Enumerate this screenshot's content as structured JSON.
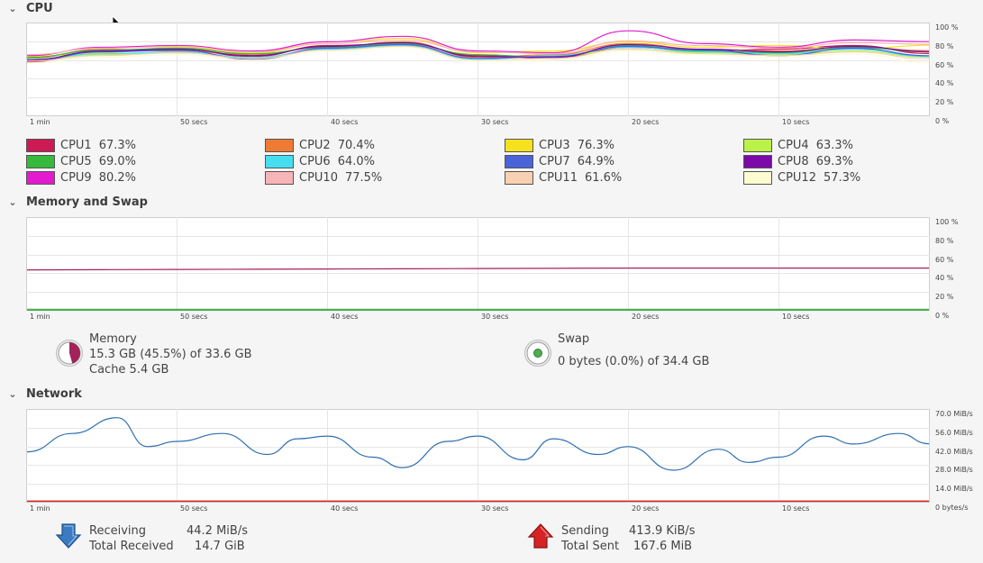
{
  "cpu": {
    "title": "CPU",
    "y_ticks": [
      "100 %",
      "80 %",
      "60 %",
      "40 %",
      "20 %",
      "0 %"
    ],
    "x_ticks": [
      "1 min",
      "50 secs",
      "40 secs",
      "30 secs",
      "20 secs",
      "10 secs"
    ],
    "legend": [
      {
        "label": "CPU1",
        "value": "67.3%",
        "color": "#cc1a55"
      },
      {
        "label": "CPU2",
        "value": "70.4%",
        "color": "#ee7a33"
      },
      {
        "label": "CPU3",
        "value": "76.3%",
        "color": "#f7e11e"
      },
      {
        "label": "CPU4",
        "value": "63.3%",
        "color": "#bbf24a"
      },
      {
        "label": "CPU5",
        "value": "69.0%",
        "color": "#36b93c"
      },
      {
        "label": "CPU6",
        "value": "64.0%",
        "color": "#45def0"
      },
      {
        "label": "CPU7",
        "value": "64.9%",
        "color": "#4a63d9"
      },
      {
        "label": "CPU8",
        "value": "69.3%",
        "color": "#7b0aa8"
      },
      {
        "label": "CPU9",
        "value": "80.2%",
        "color": "#e31acf"
      },
      {
        "label": "CPU10",
        "value": "77.5%",
        "color": "#f7b5b7"
      },
      {
        "label": "CPU11",
        "value": "61.6%",
        "color": "#f9d0b1"
      },
      {
        "label": "CPU12",
        "value": "57.3%",
        "color": "#fdfcd1"
      }
    ]
  },
  "memory_swap": {
    "title": "Memory and Swap",
    "y_ticks": [
      "100 %",
      "80 %",
      "60 %",
      "40 %",
      "20 %",
      "0 %"
    ],
    "x_ticks": [
      "1 min",
      "50 secs",
      "40 secs",
      "30 secs",
      "20 secs",
      "10 secs"
    ],
    "memory": {
      "label": "Memory",
      "usage": "15.3 GB (45.5%) of 33.6 GB",
      "cache": "Cache 5.4 GB",
      "percent": 45.5,
      "color": "#a3225a"
    },
    "swap": {
      "label": "Swap",
      "usage": "0 bytes (0.0%) of 34.4 GB",
      "percent": 0.0,
      "color": "#4caf50"
    }
  },
  "network": {
    "title": "Network",
    "y_ticks": [
      "70.0 MiB/s",
      "56.0 MiB/s",
      "42.0 MiB/s",
      "28.0 MiB/s",
      "14.0 MiB/s",
      "0 bytes/s"
    ],
    "x_ticks": [
      "1 min",
      "50 secs",
      "40 secs",
      "30 secs",
      "20 secs",
      "10 secs"
    ],
    "receiving": {
      "label": "Receiving",
      "value": "44.2 MiB/s",
      "total_label": "Total Received",
      "total": "14.7 GiB",
      "color": "#2e6fb1"
    },
    "sending": {
      "label": "Sending",
      "value": "413.9 KiB/s",
      "total_label": "Total Sent",
      "total": "167.6 MiB",
      "color": "#d22222"
    }
  },
  "chart_data": [
    {
      "type": "line",
      "title": "CPU",
      "ylabel": "%",
      "ylim": [
        0,
        100
      ],
      "x": [
        60,
        55,
        50,
        45,
        40,
        35,
        30,
        25,
        20,
        15,
        10,
        5,
        0
      ],
      "series": [
        {
          "name": "CPU1",
          "values": [
            58,
            70,
            72,
            64,
            76,
            78,
            65,
            62,
            74,
            70,
            72,
            76,
            67.3
          ]
        },
        {
          "name": "CPU2",
          "values": [
            62,
            72,
            70,
            66,
            74,
            80,
            63,
            66,
            78,
            72,
            70,
            74,
            70.4
          ]
        },
        {
          "name": "CPU3",
          "values": [
            64,
            68,
            74,
            68,
            78,
            84,
            68,
            70,
            80,
            74,
            76,
            72,
            76.3
          ]
        },
        {
          "name": "CPU4",
          "values": [
            60,
            66,
            68,
            62,
            72,
            76,
            62,
            64,
            72,
            68,
            66,
            70,
            63.3
          ]
        },
        {
          "name": "CPU5",
          "values": [
            63,
            71,
            73,
            67,
            74,
            78,
            66,
            63,
            76,
            70,
            68,
            74,
            69.0
          ]
        },
        {
          "name": "CPU6",
          "values": [
            61,
            67,
            69,
            63,
            72,
            76,
            61,
            65,
            74,
            69,
            67,
            72,
            64.0
          ]
        },
        {
          "name": "CPU7",
          "values": [
            59,
            69,
            71,
            61,
            73,
            77,
            62,
            64,
            75,
            71,
            65,
            73,
            64.9
          ]
        },
        {
          "name": "CPU8",
          "values": [
            60,
            70,
            72,
            65,
            75,
            79,
            64,
            63,
            77,
            72,
            69,
            75,
            69.3
          ]
        },
        {
          "name": "CPU9",
          "values": [
            65,
            74,
            76,
            70,
            80,
            86,
            70,
            68,
            92,
            78,
            74,
            82,
            80.2
          ]
        },
        {
          "name": "CPU10",
          "values": [
            66,
            73,
            75,
            69,
            78,
            82,
            69,
            67,
            81,
            76,
            73,
            79,
            77.5
          ]
        },
        {
          "name": "CPU11",
          "values": [
            59,
            65,
            68,
            62,
            71,
            75,
            60,
            62,
            72,
            67,
            65,
            69,
            61.6
          ]
        },
        {
          "name": "CPU12",
          "values": [
            57,
            63,
            66,
            60,
            70,
            74,
            59,
            60,
            70,
            66,
            63,
            67,
            57.3
          ]
        }
      ]
    },
    {
      "type": "line",
      "title": "Memory and Swap",
      "ylabel": "%",
      "ylim": [
        0,
        100
      ],
      "x": [
        60,
        50,
        40,
        30,
        20,
        10,
        0
      ],
      "series": [
        {
          "name": "Memory",
          "values": [
            43.5,
            44.0,
            44.5,
            45.0,
            45.5,
            45.5,
            45.5
          ]
        },
        {
          "name": "Swap",
          "values": [
            0,
            0,
            0,
            0,
            0,
            0,
            0
          ]
        }
      ]
    },
    {
      "type": "line",
      "title": "Network",
      "ylabel": "MiB/s",
      "ylim": [
        0,
        70
      ],
      "x": [
        60,
        57,
        54,
        52,
        50,
        47,
        44,
        42,
        40,
        37,
        35,
        32,
        30,
        27,
        25,
        22,
        20,
        17,
        14,
        12,
        10,
        7,
        5,
        2,
        0
      ],
      "series": [
        {
          "name": "Receiving",
          "values": [
            38,
            52,
            64,
            42,
            46,
            52,
            36,
            48,
            50,
            34,
            26,
            46,
            50,
            32,
            48,
            36,
            42,
            24,
            40,
            30,
            34,
            50,
            44,
            52,
            44.2
          ]
        },
        {
          "name": "Sending",
          "values": [
            0.4,
            0.4,
            0.4,
            0.4,
            0.4,
            0.4,
            0.4,
            0.4,
            0.4,
            0.4,
            0.4,
            0.4,
            0.4,
            0.4,
            0.4,
            0.4,
            0.4,
            0.4,
            0.4,
            0.4,
            0.4,
            0.4,
            0.4,
            0.4,
            0.4
          ]
        }
      ]
    }
  ]
}
